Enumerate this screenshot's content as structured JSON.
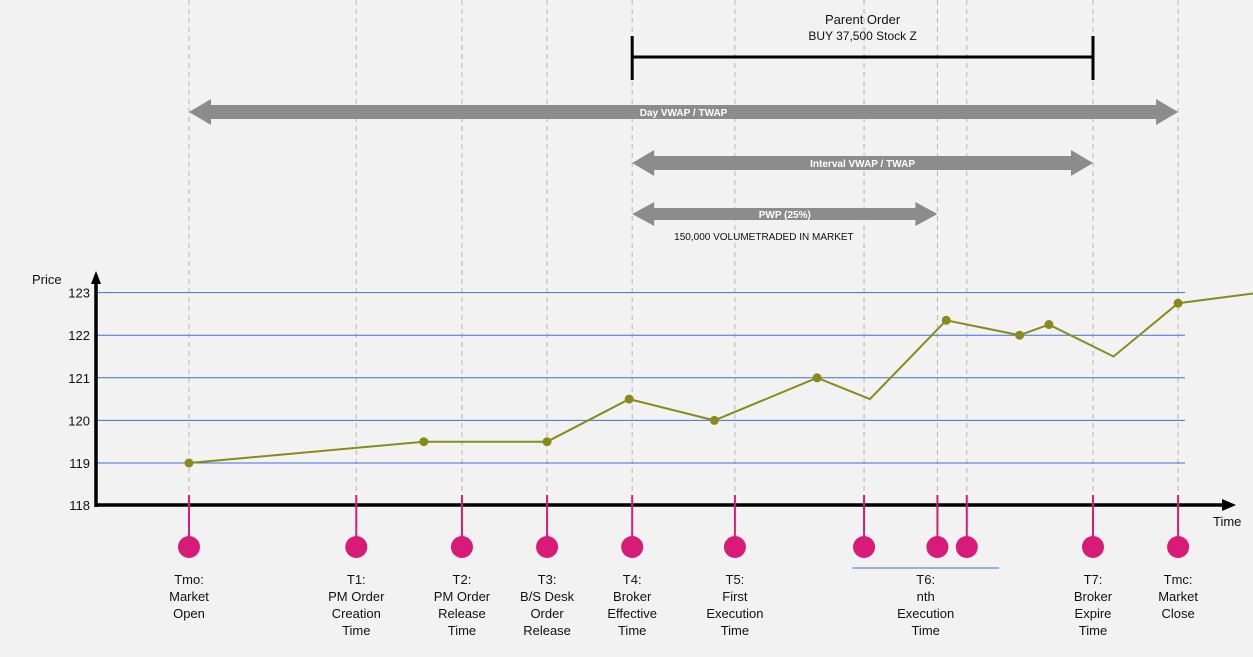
{
  "chart_data": {
    "type": "line",
    "ylabel": "Price",
    "xlabel": "Time",
    "ylim": [
      118,
      123
    ],
    "yticks": [
      "118",
      "119",
      "120",
      "121",
      "122",
      "123"
    ],
    "grid": true,
    "series": [
      {
        "x": [
          0,
          8.0,
          12.2,
          15.0,
          17.9,
          21.4,
          23.2,
          25.8,
          28.3,
          29.3,
          31.5,
          33.7,
          36.5,
          38.5
        ],
        "values": [
          119.0,
          119.5,
          119.5,
          120.5,
          120.0,
          121.0,
          120.5,
          122.35,
          122.0,
          122.25,
          121.5,
          122.75,
          123.0,
          123.45
        ],
        "markers": [
          true,
          true,
          true,
          true,
          true,
          true,
          false,
          true,
          true,
          true,
          false,
          true,
          true,
          false
        ]
      }
    ],
    "annotations": {
      "parent_order": {
        "line1": "Parent Order",
        "line2": "BUY 37,500 Stock Z"
      },
      "day_band": {
        "label": "Day VWAP / TWAP"
      },
      "interval_band": {
        "label": "Interval VWAP / TWAP"
      },
      "pwp_band": {
        "label": "PWP (25%)",
        "note": "150,000 VOLUMETRADED IN MARKET"
      }
    },
    "events": [
      {
        "x": 0,
        "lines": [
          "Tmo:",
          "Market",
          "Open"
        ]
      },
      {
        "x": 5.7,
        "lines": [
          "T1:",
          "PM Order",
          "Creation",
          "Time"
        ]
      },
      {
        "x": 9.3,
        "lines": [
          "T2:",
          "PM Order",
          "Release",
          "Time"
        ]
      },
      {
        "x": 12.2,
        "lines": [
          "T3:",
          "B/S Desk",
          "Order",
          "Release"
        ]
      },
      {
        "x": 15.1,
        "lines": [
          "T4:",
          "Broker",
          "Effective",
          "Time"
        ]
      },
      {
        "x": 18.6,
        "lines": [
          "T5:",
          "First",
          "Execution",
          "Time"
        ]
      },
      {
        "x": 23.0,
        "lines": []
      },
      {
        "x": 25.5,
        "lines": []
      },
      {
        "x": 26.5,
        "lines": []
      },
      {
        "x": 30.8,
        "lines": [
          "T7:",
          "Broker",
          "Expire",
          "Time"
        ]
      },
      {
        "x": 33.7,
        "lines": [
          "Tmc:",
          "Market",
          "Close"
        ]
      }
    ],
    "event_group": {
      "lines": [
        "T6:",
        "nth",
        "Execution",
        "Time"
      ]
    }
  }
}
